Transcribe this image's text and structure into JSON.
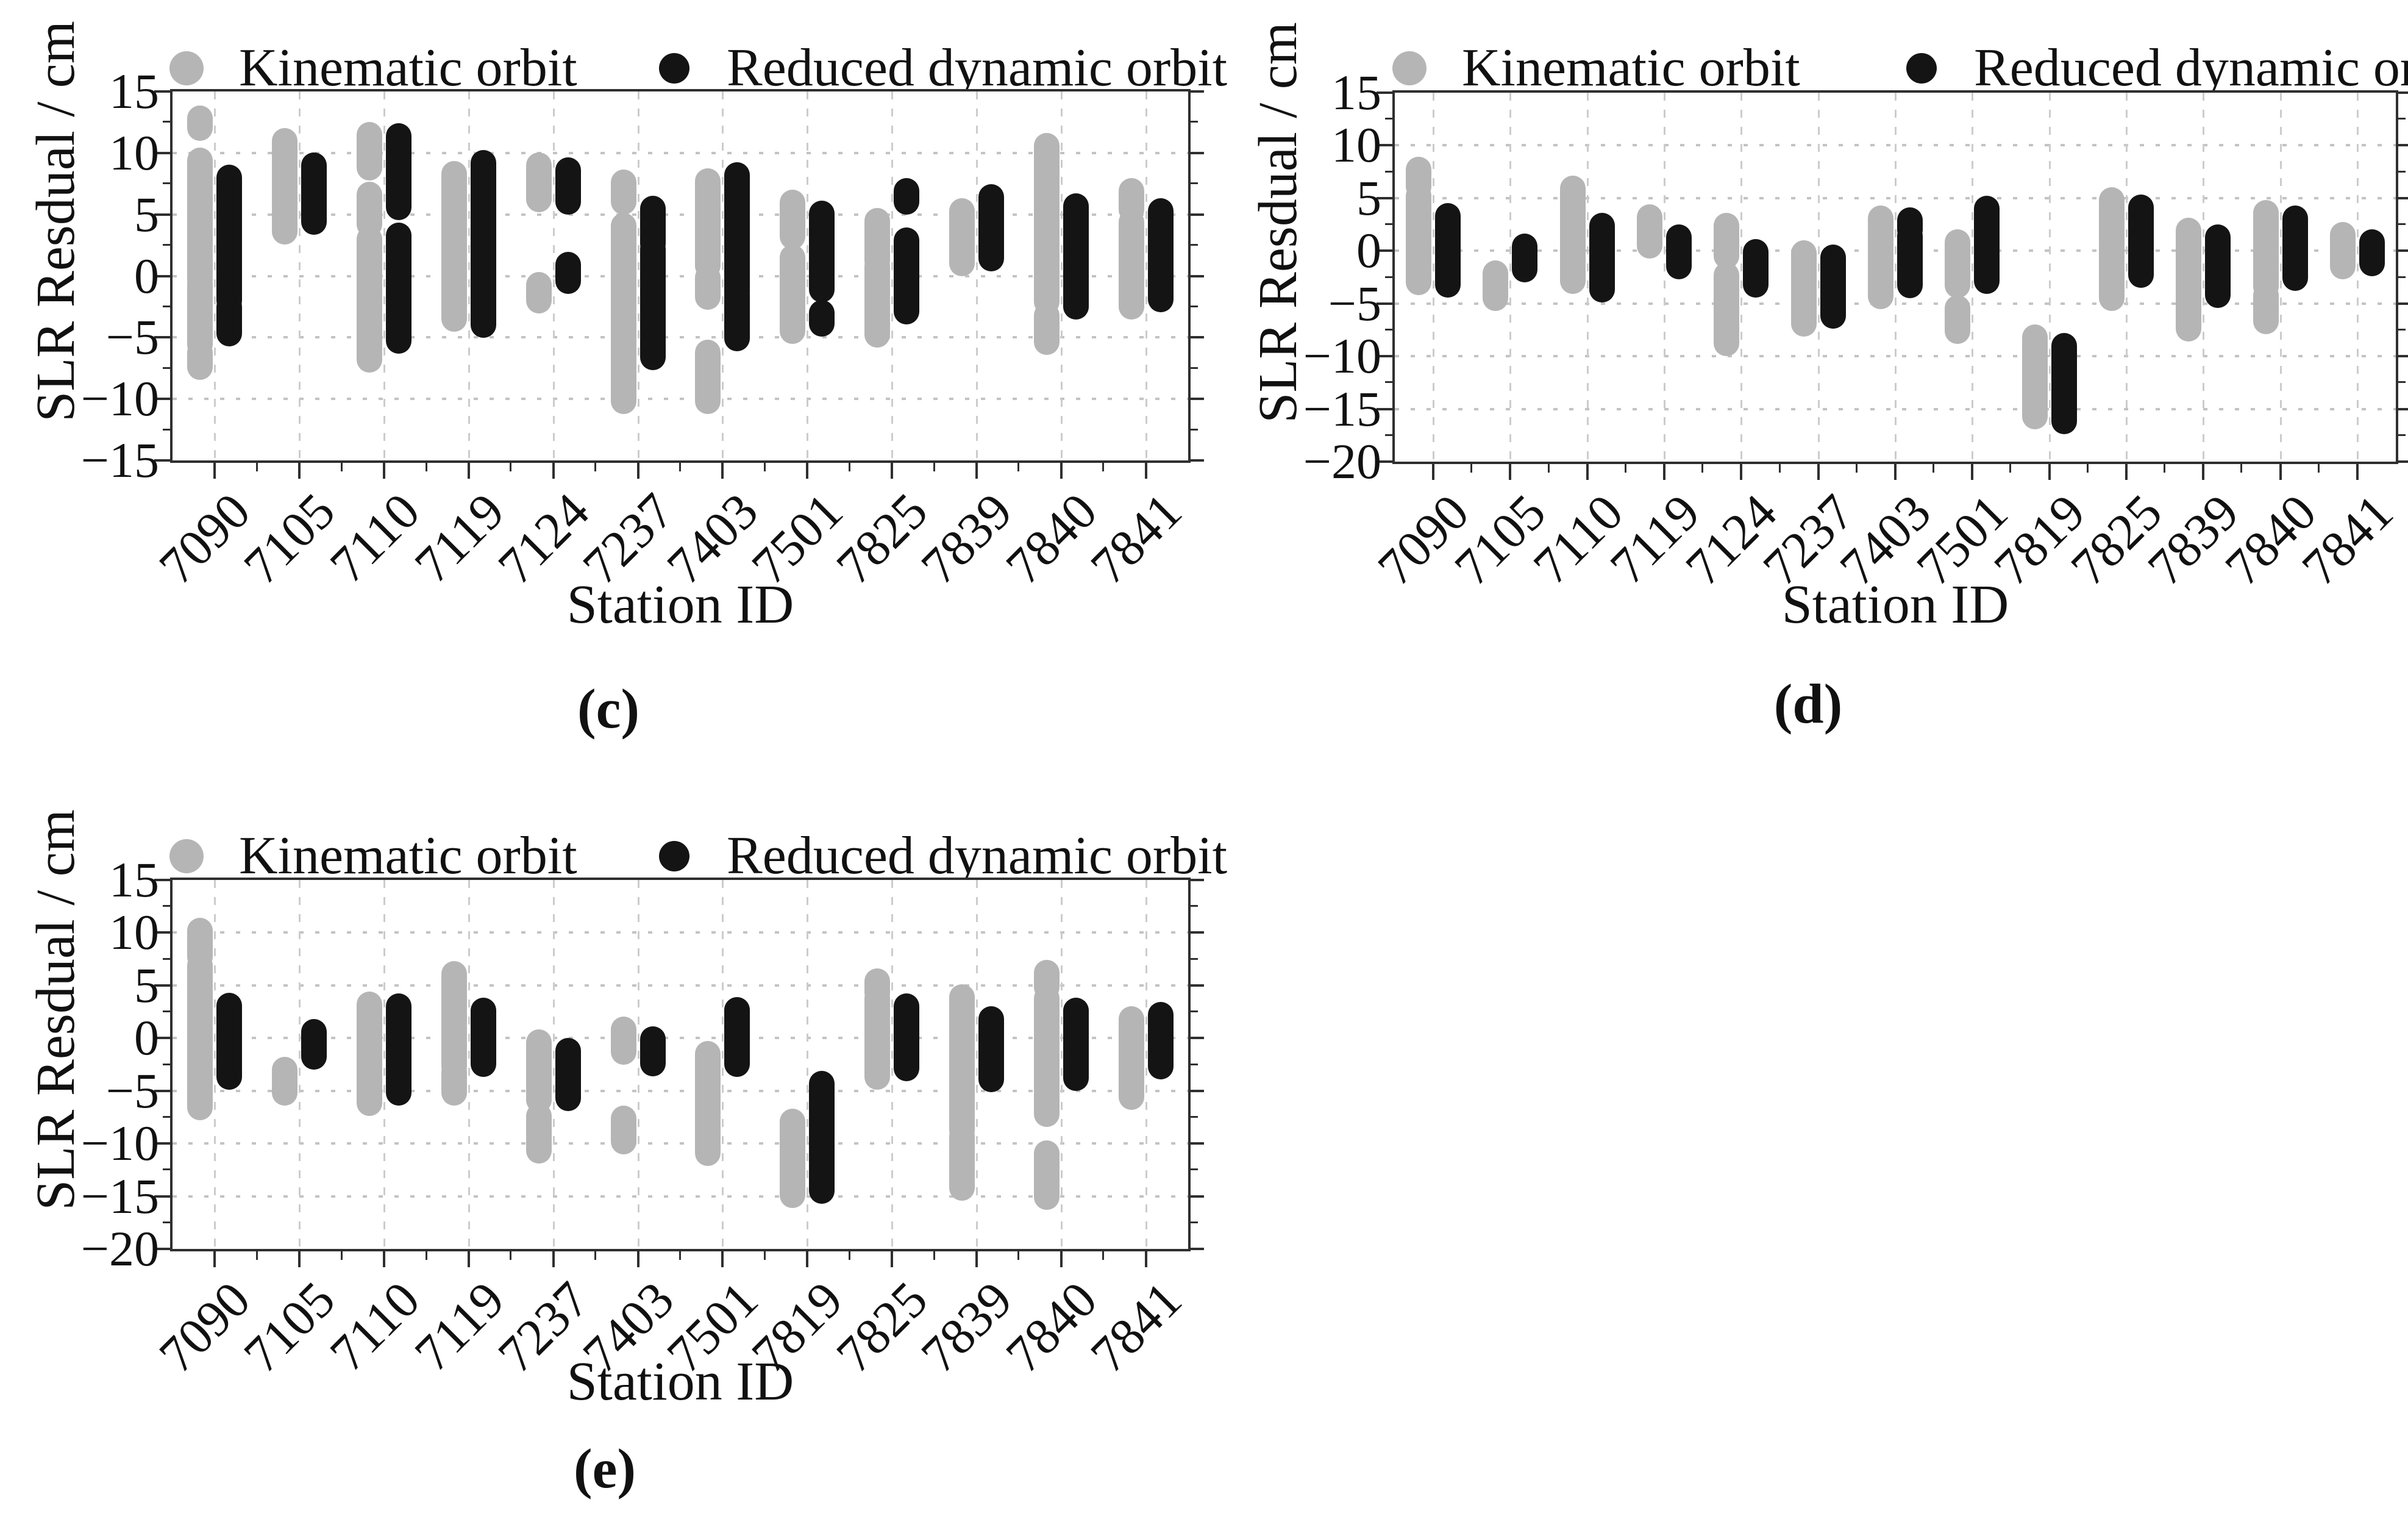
{
  "page": {
    "background": "#ffffff"
  },
  "colors": {
    "kinematic": "#b5b5b5",
    "reduced": "#141414",
    "grid": "#c7c7c7",
    "axis": "#2f2f2f",
    "text": "#111111"
  },
  "legend": {
    "kinematic_label": "Kinematic orbit",
    "reduced_label": "Reduced dynamic orbit"
  },
  "chart_data": [
    {
      "type": "scatter",
      "panel": "c",
      "caption": "(c)",
      "xlabel": "Station ID",
      "ylabel": "SLR Resdual / cm",
      "ylim": [
        -15,
        15
      ],
      "yticks": [
        15,
        10,
        5,
        0,
        -5,
        -10,
        -15
      ],
      "ytick_labels": [
        "15",
        "10",
        "5",
        "0",
        "−5",
        "−10",
        "−15"
      ],
      "grid": "dotted horizontal at majors, dashed vertical at stations",
      "legend_position": "top",
      "categories": [
        "7090",
        "7105",
        "7110",
        "7119",
        "7124",
        "7237",
        "7403",
        "7501",
        "7825",
        "7839",
        "7840",
        "7841"
      ],
      "series": [
        {
          "name": "Kinematic orbit",
          "color": "#b5b5b5",
          "segments_cm": [
            [
              [
                12.8,
                12.0
              ],
              [
                9.4,
                -0.3
              ],
              [
                -0.6,
                -5.6
              ],
              [
                -6.2,
                -7.4
              ]
            ],
            [
              [
                11.0,
                3.6
              ]
            ],
            [
              [
                11.5,
                8.8
              ],
              [
                6.6,
                4.2
              ],
              [
                3.0,
                -6.8
              ]
            ],
            [
              [
                8.3,
                -3.5
              ]
            ],
            [
              [
                9.0,
                6.2
              ],
              [
                -0.7,
                -2.0
              ]
            ],
            [
              [
                7.6,
                6.0
              ],
              [
                4.1,
                -2.8
              ],
              [
                -3.1,
                -10.2
              ]
            ],
            [
              [
                7.7,
                0.8
              ],
              [
                -0.1,
                -1.7
              ],
              [
                -6.2,
                -10.2
              ]
            ],
            [
              [
                6.0,
                3.2
              ],
              [
                1.5,
                -4.5
              ]
            ],
            [
              [
                4.5,
                1.2
              ],
              [
                0.8,
                -4.8
              ]
            ],
            [
              [
                5.3,
                1.0
              ]
            ],
            [
              [
                10.6,
                -2.1
              ],
              [
                -3.2,
                -5.4
              ]
            ],
            [
              [
                6.9,
                5.4
              ],
              [
                4.4,
                -2.5
              ]
            ]
          ]
        },
        {
          "name": "Reduced dynamic orbit",
          "color": "#141414",
          "segments_cm": [
            [
              [
                8.0,
                -2.0
              ],
              [
                -2.5,
                -4.7
              ]
            ],
            [
              [
                9.0,
                4.4
              ]
            ],
            [
              [
                11.4,
                5.6
              ],
              [
                3.3,
                -5.3
              ]
            ],
            [
              [
                9.2,
                -4.0
              ]
            ],
            [
              [
                8.6,
                6.0
              ],
              [
                0.9,
                -0.4
              ]
            ],
            [
              [
                5.5,
                4.0
              ],
              [
                3.9,
                2.6
              ],
              [
                2.2,
                -6.6
              ]
            ],
            [
              [
                8.2,
                -1.3
              ],
              [
                -1.5,
                -5.1
              ]
            ],
            [
              [
                5.1,
                -1.1
              ],
              [
                -3.0,
                -3.9
              ]
            ],
            [
              [
                6.9,
                6.0
              ],
              [
                2.9,
                -2.9
              ]
            ],
            [
              [
                6.4,
                1.4
              ]
            ],
            [
              [
                5.7,
                -2.5
              ]
            ],
            [
              [
                5.3,
                -1.9
              ]
            ]
          ]
        }
      ]
    },
    {
      "type": "scatter",
      "panel": "d",
      "caption": "(d)",
      "xlabel": "Station ID",
      "ylabel": "SLR Resdual / cm",
      "ylim": [
        -20,
        15
      ],
      "yticks": [
        15,
        10,
        5,
        0,
        -5,
        -10,
        -15,
        -20
      ],
      "ytick_labels": [
        "15",
        "10",
        "5",
        "0",
        "−5",
        "−10",
        "−15",
        "−20"
      ],
      "grid": "dotted horizontal at majors, dashed vertical at stations",
      "legend_position": "top",
      "categories": [
        "7090",
        "7105",
        "7110",
        "7119",
        "7124",
        "7237",
        "7403",
        "7501",
        "7819",
        "7825",
        "7839",
        "7840",
        "7841"
      ],
      "series": [
        {
          "name": "Kinematic orbit",
          "color": "#b5b5b5",
          "segments_cm": [
            [
              [
                7.7,
                6.1
              ],
              [
                5.2,
                -3.0
              ]
            ],
            [
              [
                -2.1,
                -4.5
              ]
            ],
            [
              [
                5.9,
                -2.9
              ]
            ],
            [
              [
                3.2,
                0.5
              ]
            ],
            [
              [
                2.4,
                -0.5
              ],
              [
                -2.3,
                -8.8
              ]
            ],
            [
              [
                -0.2,
                -6.9
              ]
            ],
            [
              [
                3.1,
                -4.3
              ]
            ],
            [
              [
                0.8,
                -3.3
              ],
              [
                -5.4,
                -7.6
              ]
            ],
            [
              [
                -8.2,
                -15.7
              ]
            ],
            [
              [
                4.8,
                -4.5
              ]
            ],
            [
              [
                1.9,
                -7.4
              ]
            ],
            [
              [
                3.6,
                -3.4
              ],
              [
                -4.2,
                -6.7
              ]
            ],
            [
              [
                1.5,
                -1.5
              ]
            ]
          ]
        },
        {
          "name": "Reduced dynamic orbit",
          "color": "#141414",
          "segments_cm": [
            [
              [
                3.3,
                -3.2
              ]
            ],
            [
              [
                0.4,
                -1.8
              ]
            ],
            [
              [
                2.4,
                -3.7
              ]
            ],
            [
              [
                1.3,
                -1.5
              ]
            ],
            [
              [
                -0.1,
                -3.2
              ]
            ],
            [
              [
                -0.6,
                -6.2
              ]
            ],
            [
              [
                2.9,
                2.0
              ],
              [
                1.4,
                -3.3
              ]
            ],
            [
              [
                4.0,
                -2.9
              ]
            ],
            [
              [
                -9.0,
                -16.2
              ]
            ],
            [
              [
                4.1,
                -2.3
              ]
            ],
            [
              [
                1.3,
                -4.2
              ]
            ],
            [
              [
                3.1,
                -2.6
              ]
            ],
            [
              [
                0.8,
                -1.2
              ]
            ]
          ]
        }
      ]
    },
    {
      "type": "scatter",
      "panel": "e",
      "caption": "(e)",
      "xlabel": "Station ID",
      "ylabel": "SLR Resdual / cm",
      "ylim": [
        -20,
        15
      ],
      "yticks": [
        15,
        10,
        5,
        0,
        -5,
        -10,
        -15,
        -20
      ],
      "ytick_labels": [
        "15",
        "10",
        "5",
        "0",
        "−5",
        "−10",
        "−15",
        "−20"
      ],
      "grid": "dotted horizontal at majors, dashed vertical at stations",
      "legend_position": "top",
      "categories": [
        "7090",
        "7105",
        "7110",
        "7119",
        "7237",
        "7403",
        "7501",
        "7819",
        "7825",
        "7839",
        "7840",
        "7841"
      ],
      "series": [
        {
          "name": "Kinematic orbit",
          "color": "#b5b5b5",
          "segments_cm": [
            [
              [
                10.2,
                7.7
              ],
              [
                6.9,
                -6.6
              ]
            ],
            [
              [
                -3.0,
                -5.2
              ]
            ],
            [
              [
                3.2,
                -6.2
              ]
            ],
            [
              [
                6.1,
                -2.7
              ],
              [
                -3.2,
                -5.2
              ]
            ],
            [
              [
                -0.4,
                -5.9
              ],
              [
                -7.4,
                -10.7
              ]
            ],
            [
              [
                0.8,
                -1.3
              ],
              [
                -7.6,
                -9.8
              ]
            ],
            [
              [
                -1.5,
                -10.9
              ]
            ],
            [
              [
                -7.9,
                -14.9
              ]
            ],
            [
              [
                5.4,
                4.3
              ],
              [
                3.8,
                -3.7
              ]
            ],
            [
              [
                3.9,
                -8.7
              ],
              [
                -9.3,
                -14.2
              ]
            ],
            [
              [
                6.2,
                4.8
              ],
              [
                3.8,
                -7.2
              ],
              [
                -10.9,
                -15.1
              ]
            ],
            [
              [
                1.8,
                -5.6
              ]
            ]
          ]
        },
        {
          "name": "Reduced dynamic orbit",
          "color": "#141414",
          "segments_cm": [
            [
              [
                3.1,
                -3.7
              ]
            ],
            [
              [
                0.6,
                -1.8
              ]
            ],
            [
              [
                3.0,
                -5.2
              ]
            ],
            [
              [
                2.6,
                -2.5
              ]
            ],
            [
              [
                -1.2,
                -5.7
              ]
            ],
            [
              [
                -0.1,
                -2.4
              ]
            ],
            [
              [
                2.7,
                -2.5
              ]
            ],
            [
              [
                -4.3,
                -14.5
              ]
            ],
            [
              [
                3.0,
                -2.9
              ]
            ],
            [
              [
                1.8,
                -3.9
              ]
            ],
            [
              [
                2.6,
                -3.8
              ]
            ],
            [
              [
                2.2,
                -2.7
              ]
            ]
          ]
        }
      ]
    }
  ]
}
